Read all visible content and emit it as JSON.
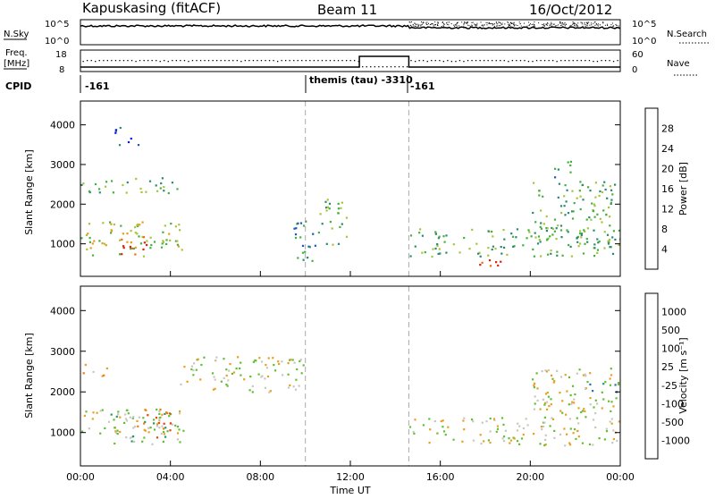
{
  "header": {
    "station": "Kapuskasing (fitACF)",
    "beam": "Beam 11",
    "date": "16/Oct/2012"
  },
  "top_panels": {
    "nsky_label": "N.Sky",
    "nsky_ticks": [
      "10^5",
      "10^0"
    ],
    "nsearch_label": "N.Search",
    "nsearch_ticks": [
      "10^5",
      "10^0"
    ],
    "freq_label": "Freq.",
    "freq_unit": "[MHz]",
    "freq_ticks": [
      "18",
      "8"
    ],
    "nave_label": "Nave",
    "nave_ticks": [
      "60",
      "0"
    ],
    "cpid_label": "CPID",
    "cpid_segments": [
      {
        "label": "-161",
        "start_hour": 0
      },
      {
        "label": "themis (tau)  -3310",
        "start_hour": 10
      },
      {
        "label": "-161",
        "start_hour": 14.6
      }
    ]
  },
  "chart_data": [
    {
      "type": "heatmap",
      "name": "power",
      "ylabel": "Slant Range [km]",
      "xlabel": "",
      "xlim_hours": [
        0,
        24
      ],
      "ylim_km": [
        180,
        4600
      ],
      "yticks": [
        1000,
        2000,
        3000,
        4000
      ],
      "colorbar": {
        "label": "Power [dB]",
        "ticks": [
          "4",
          "8",
          "12",
          "16",
          "20",
          "24",
          "28"
        ],
        "colors": [
          "#1414e6",
          "#1e5ab4",
          "#2a8a70",
          "#44b040",
          "#a8c43a",
          "#ee9a18",
          "#ee6a10",
          "#dd2010"
        ]
      },
      "echo_regions": [
        {
          "t": [
            0.0,
            4.6
          ],
          "r": [
            700,
            1600
          ],
          "level": 4
        },
        {
          "t": [
            0.0,
            4.4
          ],
          "r": [
            2300,
            2700
          ],
          "level": 3
        },
        {
          "t": [
            1.5,
            2.6
          ],
          "r": [
            3500,
            4000
          ],
          "level": 1
        },
        {
          "t": [
            1.6,
            3.0
          ],
          "r": [
            750,
            1200
          ],
          "level": 7
        },
        {
          "t": [
            9.4,
            10.6
          ],
          "r": [
            500,
            1600
          ],
          "level": 2
        },
        {
          "t": [
            10.6,
            11.8
          ],
          "r": [
            1000,
            2200
          ],
          "level": 3
        },
        {
          "t": [
            14.6,
            24.0
          ],
          "r": [
            700,
            1400
          ],
          "level": 3
        },
        {
          "t": [
            17.7,
            19.3
          ],
          "r": [
            420,
            680
          ],
          "level": 7
        },
        {
          "t": [
            20.0,
            24.0
          ],
          "r": [
            1000,
            2600
          ],
          "level": 3
        },
        {
          "t": [
            21.0,
            22.0
          ],
          "r": [
            2700,
            3100
          ],
          "level": 2
        }
      ]
    },
    {
      "type": "heatmap",
      "name": "velocity",
      "ylabel": "Slant Range [km]",
      "xlabel": "Time UT",
      "xlim_hours": [
        0,
        24
      ],
      "ylim_km": [
        180,
        4600
      ],
      "yticks": [
        1000,
        2000,
        3000,
        4000
      ],
      "xticks": [
        "00:00",
        "04:00",
        "08:00",
        "12:00",
        "16:00",
        "20:00",
        "00:00"
      ],
      "colorbar": {
        "label": "Velocity [m s⁻¹]",
        "ticks": [
          "1000",
          "500",
          "100",
          "25",
          "-25",
          "-100",
          "-500",
          "-1000"
        ],
        "colors": [
          "#1a3fb8",
          "#2e6fa8",
          "#1e9a6a",
          "#60c030",
          "#c8c8c0",
          "#e8a020",
          "#ee7a10",
          "#ee4010",
          "#e01010"
        ]
      },
      "echo_regions": [
        {
          "t": [
            0.0,
            4.6
          ],
          "r": [
            1000,
            1600
          ],
          "level": 4
        },
        {
          "t": [
            0.0,
            1.2
          ],
          "r": [
            2400,
            2700
          ],
          "level": 5
        },
        {
          "t": [
            1.2,
            4.4
          ],
          "r": [
            700,
            1500
          ],
          "level": 3
        },
        {
          "t": [
            2.4,
            4.0
          ],
          "r": [
            900,
            1600
          ],
          "level": 6
        },
        {
          "t": [
            4.4,
            10.0
          ],
          "r": [
            2000,
            2900
          ],
          "level": 4
        },
        {
          "t": [
            14.6,
            24.0
          ],
          "r": [
            700,
            1400
          ],
          "level": 4
        },
        {
          "t": [
            20.0,
            24.0
          ],
          "r": [
            1400,
            2600
          ],
          "level": 4
        },
        {
          "t": [
            22.5,
            24.0
          ],
          "r": [
            2000,
            2400
          ],
          "level": 2
        }
      ]
    }
  ]
}
